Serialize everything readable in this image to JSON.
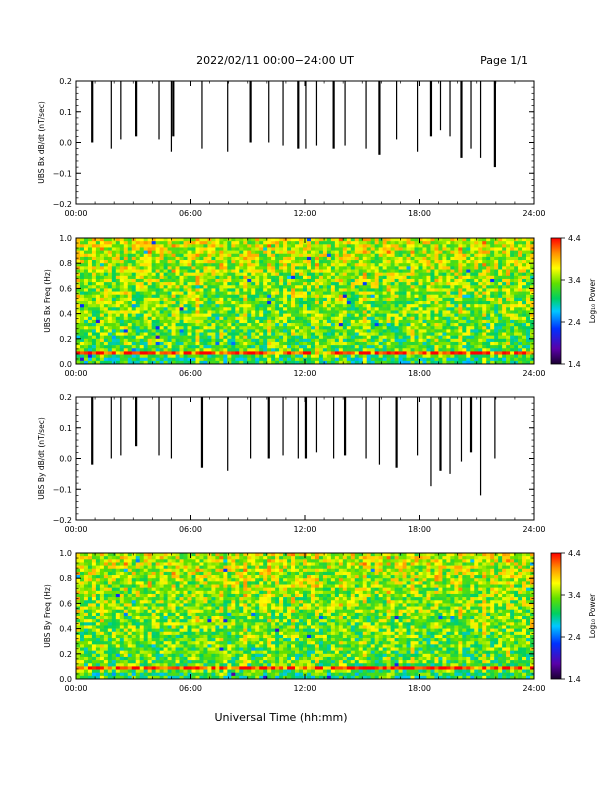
{
  "header": {
    "title": "2022/02/11  00:00−24:00 UT",
    "page": "Page 1/1"
  },
  "xlabel": "Universal Time (hh:mm)",
  "colorbar": {
    "label": "Log₁₀ Power",
    "ticks": [
      "4.4",
      "3.4",
      "2.4",
      "1.4"
    ],
    "range": [
      1.4,
      4.4
    ]
  },
  "chart_data": [
    {
      "type": "line",
      "ylabel": "UBS Bx dB/dt (nT/sec)",
      "xlim": [
        0,
        24
      ],
      "ylim": [
        -0.2,
        0.2
      ],
      "xticks": [
        "00:00",
        "06:00",
        "12:00",
        "18:00",
        "24:00"
      ],
      "yticks": [
        "0.2",
        "0.1",
        "0.0",
        "−0.1",
        "−0.2"
      ],
      "spikes": [
        {
          "t": 0.85,
          "v": 0.0
        },
        {
          "t": 1.85,
          "v": -0.02
        },
        {
          "t": 2.35,
          "v": 0.01
        },
        {
          "t": 3.15,
          "v": 0.02
        },
        {
          "t": 4.35,
          "v": 0.01
        },
        {
          "t": 5.0,
          "v": -0.03
        },
        {
          "t": 5.1,
          "v": 0.02
        },
        {
          "t": 6.6,
          "v": -0.02
        },
        {
          "t": 7.95,
          "v": -0.03
        },
        {
          "t": 9.15,
          "v": 0.0
        },
        {
          "t": 10.1,
          "v": 0.0
        },
        {
          "t": 10.85,
          "v": -0.01
        },
        {
          "t": 11.65,
          "v": -0.02
        },
        {
          "t": 12.05,
          "v": -0.02
        },
        {
          "t": 12.6,
          "v": -0.01
        },
        {
          "t": 13.5,
          "v": -0.02
        },
        {
          "t": 14.1,
          "v": -0.01
        },
        {
          "t": 15.2,
          "v": -0.02
        },
        {
          "t": 15.9,
          "v": -0.04
        },
        {
          "t": 16.8,
          "v": 0.01
        },
        {
          "t": 17.9,
          "v": -0.03
        },
        {
          "t": 18.6,
          "v": 0.02
        },
        {
          "t": 19.1,
          "v": 0.04
        },
        {
          "t": 19.6,
          "v": 0.02
        },
        {
          "t": 20.2,
          "v": -0.05
        },
        {
          "t": 20.7,
          "v": -0.02
        },
        {
          "t": 21.2,
          "v": -0.05
        },
        {
          "t": 21.95,
          "v": -0.08
        }
      ]
    },
    {
      "type": "heatmap",
      "ylabel": "UBS Bx Freq (Hz)",
      "xlim": [
        0,
        24
      ],
      "ylim": [
        0.0,
        1.0
      ],
      "xticks": [
        "00:00",
        "06:00",
        "12:00",
        "18:00",
        "24:00"
      ],
      "yticks": [
        "1.0",
        "0.8",
        "0.6",
        "0.4",
        "0.2",
        "0.0"
      ],
      "z_range": [
        1.4,
        4.4
      ]
    },
    {
      "type": "line",
      "ylabel": "UBS By dB/dt (nT/sec)",
      "xlim": [
        0,
        24
      ],
      "ylim": [
        -0.2,
        0.2
      ],
      "xticks": [
        "00:00",
        "06:00",
        "12:00",
        "18:00",
        "24:00"
      ],
      "yticks": [
        "0.2",
        "0.1",
        "0.0",
        "−0.1",
        "−0.2"
      ],
      "spikes": [
        {
          "t": 0.85,
          "v": -0.02
        },
        {
          "t": 1.85,
          "v": 0.0
        },
        {
          "t": 2.35,
          "v": 0.01
        },
        {
          "t": 3.15,
          "v": 0.04
        },
        {
          "t": 4.35,
          "v": 0.01
        },
        {
          "t": 5.0,
          "v": 0.0
        },
        {
          "t": 6.6,
          "v": -0.03
        },
        {
          "t": 7.95,
          "v": -0.04
        },
        {
          "t": 9.15,
          "v": 0.0
        },
        {
          "t": 10.1,
          "v": 0.0
        },
        {
          "t": 10.85,
          "v": 0.01
        },
        {
          "t": 11.65,
          "v": 0.0
        },
        {
          "t": 12.05,
          "v": 0.0
        },
        {
          "t": 12.6,
          "v": 0.02
        },
        {
          "t": 13.5,
          "v": 0.0
        },
        {
          "t": 14.1,
          "v": 0.01
        },
        {
          "t": 15.2,
          "v": 0.0
        },
        {
          "t": 15.9,
          "v": -0.02
        },
        {
          "t": 16.8,
          "v": -0.03
        },
        {
          "t": 17.9,
          "v": 0.01
        },
        {
          "t": 18.6,
          "v": -0.09
        },
        {
          "t": 19.1,
          "v": -0.04
        },
        {
          "t": 19.6,
          "v": -0.05
        },
        {
          "t": 20.2,
          "v": -0.01
        },
        {
          "t": 20.7,
          "v": 0.02
        },
        {
          "t": 21.2,
          "v": -0.12
        },
        {
          "t": 21.95,
          "v": 0.0
        }
      ]
    },
    {
      "type": "heatmap",
      "ylabel": "UBS By Freq (Hz)",
      "xlim": [
        0,
        24
      ],
      "ylim": [
        0.0,
        1.0
      ],
      "xticks": [
        "00:00",
        "06:00",
        "12:00",
        "18:00",
        "24:00"
      ],
      "yticks": [
        "1.0",
        "0.8",
        "0.6",
        "0.4",
        "0.2",
        "0.0"
      ],
      "z_range": [
        1.4,
        4.4
      ]
    }
  ]
}
